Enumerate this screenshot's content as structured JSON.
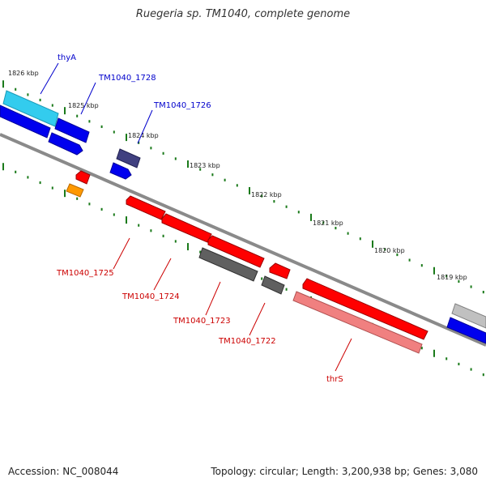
{
  "title": "Ruegeria sp. TM1040, complete genome",
  "footer": {
    "accession": "Accession: NC_008044",
    "summary": "Topology: circular; Length: 3,200,938 bp; Genes: 3,080"
  },
  "colors": {
    "backbone": "#808080",
    "tick": "#1a7a1a",
    "forward_label": "#0000cc",
    "reverse_label": "#cc0000",
    "gene_red": "#ff0000",
    "gene_pink": "#f08080",
    "gene_blue": "#0000ee",
    "gene_cyan": "#33ccee",
    "gene_navy": "#404080",
    "gene_gray": "#606060",
    "gene_lightgray": "#c0c0c0",
    "gene_orange": "#ff9900"
  },
  "kbp_labels": [
    "1826 kbp",
    "1825 kbp",
    "1824 kbp",
    "1823 kbp",
    "1822 kbp",
    "1821 kbp",
    "1820 kbp",
    "1819 kbp"
  ],
  "gene_labels": {
    "forward": [
      "thyA",
      "TM1040_1728",
      "TM1040_1726"
    ],
    "reverse": [
      "TM1040_1725",
      "TM1040_1724",
      "TM1040_1723",
      "TM1040_1722",
      "thrS"
    ]
  }
}
